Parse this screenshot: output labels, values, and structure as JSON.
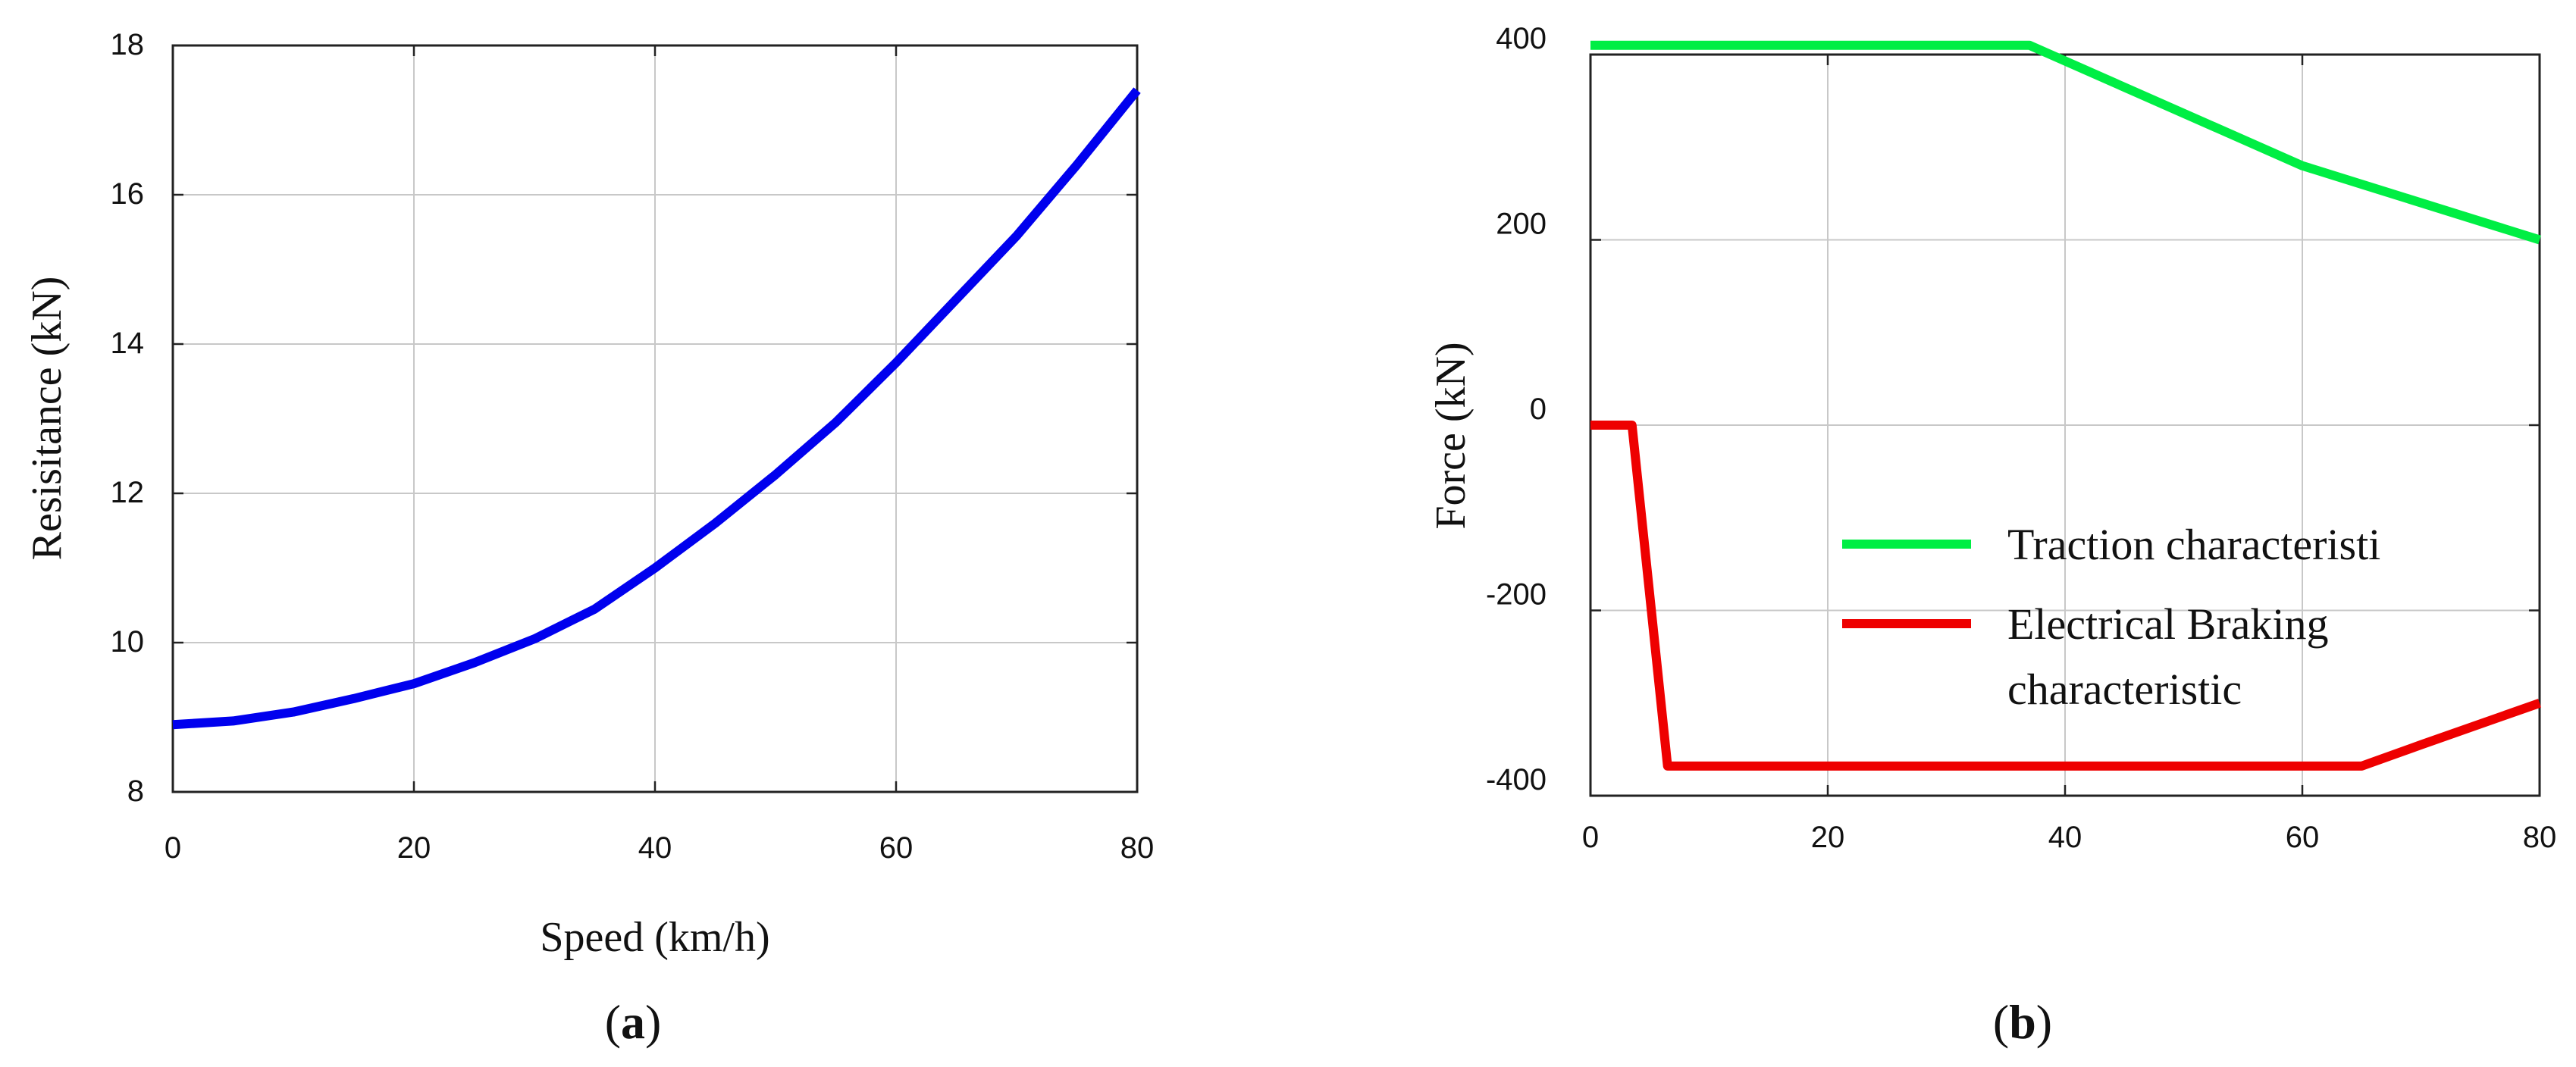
{
  "chart_data": [
    {
      "type": "line",
      "panel": "a",
      "xlabel": "Speed (km/h)",
      "ylabel": "Resisitance (kN)",
      "xlim": [
        0,
        80
      ],
      "ylim": [
        8,
        18
      ],
      "xticks": [
        0,
        20,
        40,
        60,
        80
      ],
      "yticks": [
        8,
        10,
        12,
        14,
        16,
        18
      ],
      "grid": true,
      "series": [
        {
          "color": "#0000ee",
          "x": [
            0,
            5,
            10,
            15,
            20,
            25,
            30,
            35,
            40,
            45,
            50,
            55,
            60,
            65,
            70,
            75,
            80
          ],
          "y": [
            8.9,
            8.95,
            9.07,
            9.25,
            9.45,
            9.73,
            10.05,
            10.45,
            11.0,
            11.6,
            12.25,
            12.95,
            13.75,
            14.6,
            15.45,
            16.4,
            17.4
          ]
        }
      ]
    },
    {
      "type": "line",
      "panel": "b",
      "xlabel": "",
      "ylabel": "Force (kN)",
      "xlim": [
        0,
        80
      ],
      "ylim": [
        -400,
        400
      ],
      "xticks": [
        0,
        20,
        40,
        60,
        80
      ],
      "yticks": [
        -400,
        -200,
        0,
        200,
        400
      ],
      "grid": true,
      "legend_position": "bottom-right",
      "series": [
        {
          "name": "Traction characteristi",
          "color": "#00ee44",
          "x": [
            0,
            37,
            60,
            80
          ],
          "y": [
            410,
            410,
            280,
            200
          ]
        },
        {
          "name": "Electrical  Braking characteristic",
          "legend_lines": [
            "Electrical  Braking",
            "characteristic"
          ],
          "color": "#ee0000",
          "x": [
            0,
            3.5,
            6.5,
            65,
            70,
            80
          ],
          "y": [
            0,
            0,
            -368,
            -368,
            -345,
            -300
          ]
        }
      ]
    }
  ],
  "panel_labels": [
    {
      "open": "(",
      "letter": "a",
      "close": ")"
    },
    {
      "open": "(",
      "letter": "b",
      "close": ")"
    }
  ]
}
